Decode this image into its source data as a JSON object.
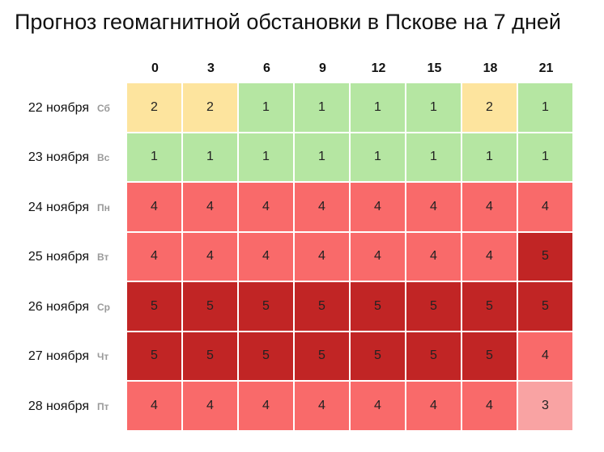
{
  "chart_data": {
    "type": "heatmap",
    "title": "Прогноз геомагнитной обстановки в Пскове на 7 дней",
    "hours": [
      "0",
      "3",
      "6",
      "9",
      "12",
      "15",
      "18",
      "21"
    ],
    "days": [
      {
        "date": "22 ноября",
        "dow": "Сб"
      },
      {
        "date": "23 ноября",
        "dow": "Вс"
      },
      {
        "date": "24 ноября",
        "dow": "Пн"
      },
      {
        "date": "25 ноября",
        "dow": "Вт"
      },
      {
        "date": "26 ноября",
        "dow": "Ср"
      },
      {
        "date": "27 ноября",
        "dow": "Чт"
      },
      {
        "date": "28 ноября",
        "dow": "Пт"
      }
    ],
    "values": [
      [
        2,
        2,
        1,
        1,
        1,
        1,
        2,
        1
      ],
      [
        1,
        1,
        1,
        1,
        1,
        1,
        1,
        1
      ],
      [
        4,
        4,
        4,
        4,
        4,
        4,
        4,
        4
      ],
      [
        4,
        4,
        4,
        4,
        4,
        4,
        4,
        5
      ],
      [
        5,
        5,
        5,
        5,
        5,
        5,
        5,
        5
      ],
      [
        5,
        5,
        5,
        5,
        5,
        5,
        5,
        4
      ],
      [
        4,
        4,
        4,
        4,
        4,
        4,
        4,
        3
      ]
    ],
    "colors": {
      "1": "#b5e6a2",
      "2": "#fde49e",
      "3": "#f9a3a3",
      "4": "#f96a6a",
      "5": "#c12525"
    }
  }
}
